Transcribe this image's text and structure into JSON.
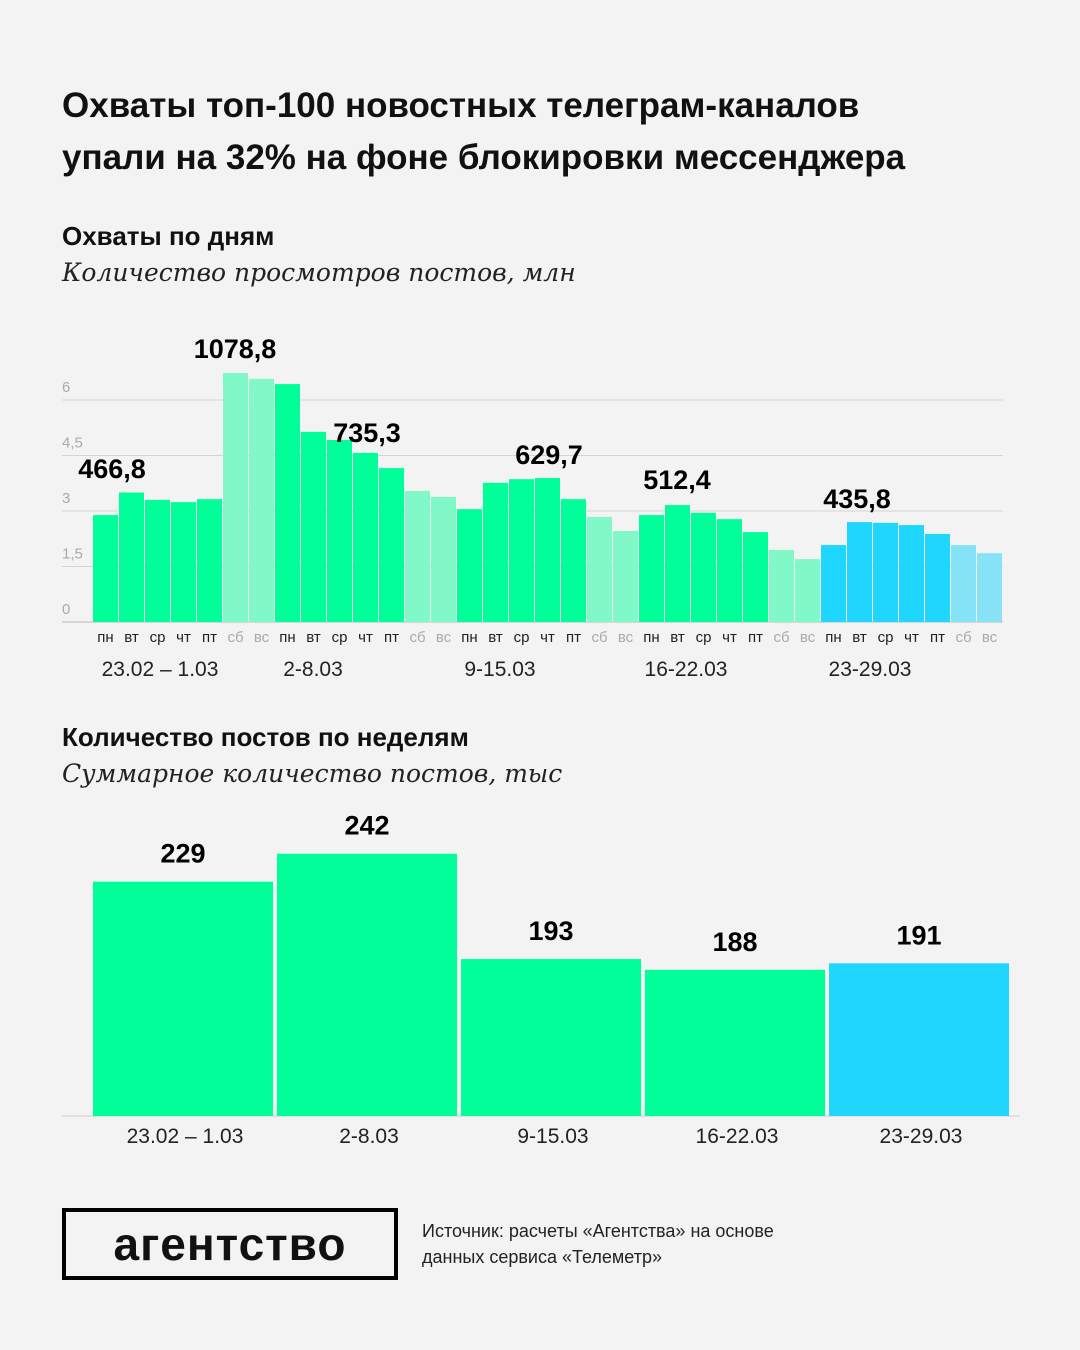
{
  "title_line1": "Охваты топ-100 новостных телеграм-каналов",
  "title_line2": "упали на 32% на фоне блокировки мессенджера",
  "colors": {
    "green": "#00ff99",
    "green_weekend": "#80f8c8",
    "blue": "#1fd6ff",
    "blue_weekend": "#86e3f7",
    "grid": "#d4d4d4"
  },
  "chart_data": [
    {
      "type": "bar",
      "title": "Охваты по дням",
      "subtitle": "Количество просмотров постов, млн",
      "ylim": [
        0,
        6.8
      ],
      "yticks": [
        "0",
        "1,5",
        "3",
        "4,5",
        "6"
      ],
      "ytick_values": [
        0,
        1.5,
        3,
        4.5,
        6
      ],
      "grid": true,
      "day_labels": [
        "пн",
        "вт",
        "ср",
        "чт",
        "пт",
        "сб",
        "вс"
      ],
      "weeks": [
        {
          "label": "23.02 – 1.03",
          "annotation": "466,8",
          "values": [
            2.89,
            3.5,
            3.3,
            3.24,
            3.32,
            6.73,
            6.57
          ]
        },
        {
          "label": "2-8.03",
          "annotation": "1078,8",
          "values": [
            6.43,
            5.14,
            4.92,
            4.57,
            4.16,
            3.54,
            3.38
          ]
        },
        {
          "label": "9-15.03",
          "annotation": "735,3",
          "values": [
            3.05,
            3.76,
            3.86,
            3.89,
            3.32,
            2.84,
            2.46
          ]
        },
        {
          "label": "16-22.03",
          "annotation": "629,7",
          "values": [
            2.89,
            3.16,
            2.95,
            2.78,
            2.43,
            1.95,
            1.7
          ]
        },
        {
          "label": "23-29.03",
          "annotation": "512,4",
          "values": [
            2.08,
            2.7,
            2.68,
            2.62,
            2.38,
            2.08,
            1.86
          ]
        }
      ],
      "extra_annotation": "435,8"
    },
    {
      "type": "bar",
      "title": "Количество постов по неделям",
      "subtitle": "Суммарное количество постов, тыс",
      "categories": [
        "23.02 – 1.03",
        "2-8.03",
        "9-15.03",
        "16-22.03",
        "23-29.03"
      ],
      "values": [
        229,
        242,
        193,
        188,
        191
      ],
      "value_labels": [
        "229",
        "242",
        "193",
        "188",
        "191"
      ]
    }
  ],
  "footer": {
    "logo": "агентство",
    "source_line1": "Источник: расчеты «Агентства» на основе",
    "source_line2": "данных сервиса «Телеметр»"
  }
}
